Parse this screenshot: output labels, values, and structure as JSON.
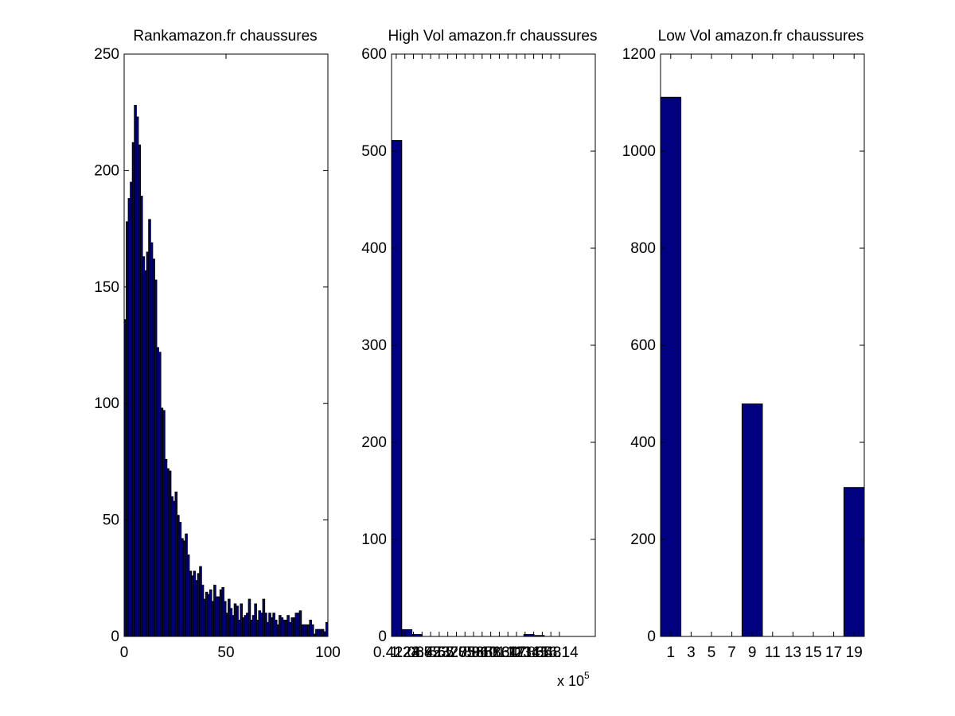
{
  "figure": {
    "background": "#ffffff",
    "bar_color": "#000080",
    "edge_color": "#000000"
  },
  "chart_data": [
    {
      "type": "bar",
      "title": "Rankamazon.fr chaussures",
      "xlim": [
        0,
        100
      ],
      "ylim": [
        0,
        250
      ],
      "xticks": [
        0,
        50,
        100
      ],
      "xtick_labels": [
        "0",
        "50",
        "100"
      ],
      "yticks": [
        0,
        50,
        100,
        150,
        200,
        250
      ],
      "ytick_labels": [
        "0",
        "50",
        "100",
        "150",
        "200",
        "250"
      ],
      "bin_start": 0,
      "bin_width": 1,
      "values": [
        136,
        178,
        188,
        195,
        212,
        228,
        223,
        211,
        189,
        163,
        157,
        165,
        179,
        169,
        162,
        153,
        124,
        122,
        98,
        97,
        76,
        72,
        71,
        60,
        58,
        62,
        52,
        49,
        42,
        41,
        44,
        35,
        28,
        26,
        28,
        24,
        27,
        30,
        22,
        16,
        19,
        18,
        20,
        15,
        22,
        17,
        17,
        20,
        21,
        15,
        10,
        16,
        12,
        9,
        14,
        13,
        7,
        14,
        8,
        9,
        10,
        16,
        7,
        9,
        14,
        7,
        11,
        10,
        16,
        10,
        6,
        10,
        8,
        10,
        7,
        5,
        9,
        8,
        7,
        7,
        9,
        6,
        8,
        8,
        10,
        10,
        11,
        5,
        5,
        5,
        5,
        7,
        5,
        1,
        3,
        3,
        3,
        3,
        2,
        6
      ]
    },
    {
      "type": "bar",
      "title": "High Vol amazon.fr chaussures",
      "xlim": [
        0.00452,
        0.24172
      ],
      "ylim": [
        0,
        600
      ],
      "yticks": [
        0,
        100,
        200,
        300,
        400,
        500,
        600
      ],
      "ytick_labels": [
        "0",
        "100",
        "200",
        "300",
        "400",
        "500",
        "600"
      ],
      "xticks": [
        0.01,
        0.02,
        0.03,
        0.04,
        0.05,
        0.06,
        0.07,
        0.08,
        0.09,
        0.1,
        0.11,
        0.12,
        0.13,
        0.14,
        0.15,
        0.16,
        0.17,
        0.18,
        0.19,
        0.2
      ],
      "xtick_labels": [
        "0.4122",
        "1.24",
        "2.068",
        "2.895",
        "3.723",
        "4.55",
        "5.378",
        "6.205",
        "7.033",
        "7.86",
        "8.688",
        "9.516",
        "10.34",
        "11.17",
        "12",
        "12.83",
        "13.65",
        "14.48",
        "15.31",
        "16.14"
      ],
      "tick_note": "tick labels overlap; only a few values are legible in the image, full set estimated",
      "x_multiplier": "x 10",
      "x_multiplier_exponent": "5",
      "bin_edges": [
        0.00452,
        0.01637,
        0.02822,
        0.04007,
        0.05192,
        0.06377,
        0.07562,
        0.08747,
        0.09932,
        0.11117,
        0.12302,
        0.13487,
        0.14672,
        0.15857,
        0.17042,
        0.18227,
        0.19412
      ],
      "values": [
        511,
        7,
        2,
        0,
        0,
        0,
        0,
        0,
        0,
        0,
        0,
        0,
        0,
        2,
        1,
        0
      ]
    },
    {
      "type": "bar",
      "title": "Low Vol amazon.fr chaussures",
      "xlim": [
        0,
        20
      ],
      "ylim": [
        0,
        1200
      ],
      "yticks": [
        0,
        200,
        400,
        600,
        800,
        1000,
        1200
      ],
      "ytick_labels": [
        "0",
        "200",
        "400",
        "600",
        "800",
        "1000",
        "1200"
      ],
      "xticks": [
        1,
        3,
        5,
        7,
        9,
        11,
        13,
        15,
        17,
        19
      ],
      "xtick_labels": [
        "1",
        "3",
        "5",
        "7",
        "9",
        "11",
        "13",
        "15",
        "17",
        "19"
      ],
      "bin_start": 0,
      "bin_width": 2,
      "values": [
        1111,
        0,
        0,
        0,
        479,
        0,
        0,
        0,
        0,
        307
      ]
    }
  ]
}
